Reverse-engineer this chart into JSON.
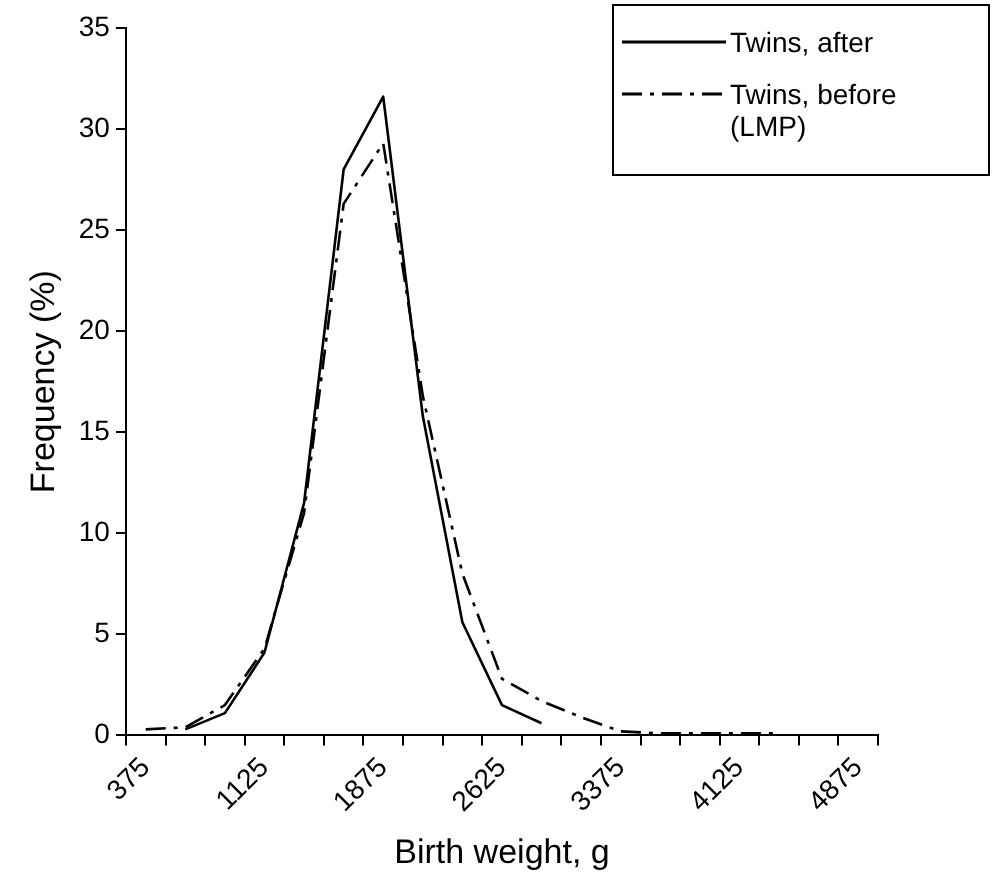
{
  "chart_data": {
    "type": "line",
    "xlabel": "Birth weight, g",
    "ylabel": "Frequency (%)",
    "categories": [
      "375",
      null,
      null,
      "1125",
      null,
      null,
      "1875",
      null,
      null,
      "2625",
      null,
      null,
      "3375",
      null,
      null,
      "4125",
      null,
      null,
      "4875"
    ],
    "ylim": [
      0,
      35
    ],
    "yticks": [
      0,
      5,
      10,
      15,
      20,
      25,
      30,
      35
    ],
    "grid": false,
    "legend": "top right",
    "marker": "none",
    "series": [
      {
        "name": "Twins, after",
        "color": "#000000",
        "line_style": "solid",
        "values": [
          null,
          0.3,
          1.1,
          4.1,
          11.5,
          28,
          31.6,
          15.8,
          5.6,
          1.5,
          0.6,
          null,
          null,
          null,
          null,
          null,
          null,
          null,
          null
        ]
      },
      {
        "name": "Twins, before (LMP)",
        "color": "#000000",
        "line_style": "dashed",
        "values": [
          0.3,
          0.4,
          1.5,
          4.3,
          11,
          26.3,
          29.3,
          16.8,
          8,
          2.8,
          1.7,
          0.9,
          0.2,
          0.1,
          0.1,
          0.1,
          0.1,
          null,
          null
        ]
      }
    ]
  }
}
